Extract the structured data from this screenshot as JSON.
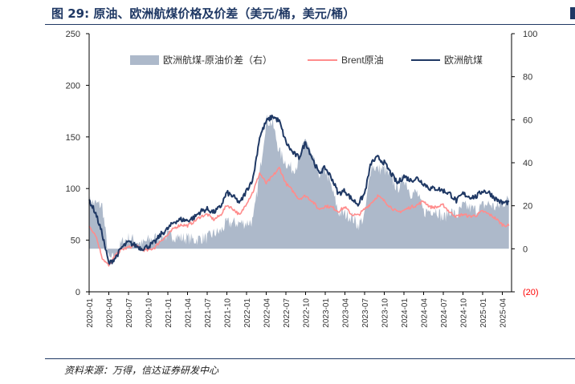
{
  "title": "图 29:  原油、欧洲航煤价格及价差（美元/桶，美元/桶）",
  "source": "资料来源：万得，信达证券研发中心",
  "colors": {
    "spread": "#adb9ca",
    "brent": "#ff8c8c",
    "jet": "#1f3864",
    "negative": "#ff0000"
  },
  "chart_data": {
    "type": "line",
    "title": "原油、欧洲航煤价格及价差（美元/桶，美元/桶）",
    "x_ticks": [
      "2020-01",
      "2020-04",
      "2020-07",
      "2020-10",
      "2021-01",
      "2021-04",
      "2021-07",
      "2021-10",
      "2022-01",
      "2022-04",
      "2022-07",
      "2022-10",
      "2023-01",
      "2023-04",
      "2023-07",
      "2023-10",
      "2024-01",
      "2024-04",
      "2024-07",
      "2024-10",
      "2025-01",
      "2025-04"
    ],
    "y_left": {
      "ticks": [
        "0",
        "50",
        "100",
        "150",
        "200",
        "250"
      ],
      "range": [
        0,
        250
      ]
    },
    "y_right": {
      "ticks": [
        "(20)",
        "0",
        "20",
        "40",
        "60",
        "80",
        "100"
      ],
      "range": [
        -20,
        100
      ]
    },
    "legend": [
      "欧洲航煤-原油价差（右）",
      "Brent原油",
      "欧洲航煤"
    ],
    "series": [
      {
        "name": "欧洲航煤",
        "axis": "left",
        "type": "line",
        "x": [
          "2020-01",
          "2020-02",
          "2020-03",
          "2020-04",
          "2020-05",
          "2020-06",
          "2020-07",
          "2020-08",
          "2020-09",
          "2020-10",
          "2020-11",
          "2020-12",
          "2021-01",
          "2021-02",
          "2021-03",
          "2021-04",
          "2021-05",
          "2021-06",
          "2021-07",
          "2021-08",
          "2021-09",
          "2021-10",
          "2021-11",
          "2021-12",
          "2022-01",
          "2022-02",
          "2022-03",
          "2022-04",
          "2022-05",
          "2022-06",
          "2022-07",
          "2022-08",
          "2022-09",
          "2022-10",
          "2022-11",
          "2022-12",
          "2023-01",
          "2023-02",
          "2023-03",
          "2023-04",
          "2023-05",
          "2023-06",
          "2023-07",
          "2023-08",
          "2023-09",
          "2023-10",
          "2023-11",
          "2023-12",
          "2024-01",
          "2024-02",
          "2024-03",
          "2024-04",
          "2024-05",
          "2024-06",
          "2024-07",
          "2024-08",
          "2024-09",
          "2024-10",
          "2024-11",
          "2024-12",
          "2025-01",
          "2025-02",
          "2025-03",
          "2025-04",
          "2025-05"
        ],
        "values": [
          89,
          76,
          56,
          27,
          33,
          43,
          48,
          45,
          42,
          44,
          48,
          56,
          61,
          68,
          70,
          69,
          72,
          78,
          80,
          77,
          82,
          96,
          92,
          86,
          98,
          110,
          150,
          165,
          170,
          165,
          145,
          135,
          130,
          145,
          130,
          115,
          120,
          110,
          95,
          98,
          90,
          85,
          95,
          125,
          130,
          125,
          115,
          105,
          112,
          108,
          110,
          105,
          100,
          100,
          98,
          95,
          88,
          95,
          92,
          92,
          98,
          96,
          90,
          86,
          87
        ]
      },
      {
        "name": "Brent原油",
        "axis": "left",
        "type": "line",
        "x": [
          "2020-01",
          "2020-02",
          "2020-03",
          "2020-04",
          "2020-05",
          "2020-06",
          "2020-07",
          "2020-08",
          "2020-09",
          "2020-10",
          "2020-11",
          "2020-12",
          "2021-01",
          "2021-02",
          "2021-03",
          "2021-04",
          "2021-05",
          "2021-06",
          "2021-07",
          "2021-08",
          "2021-09",
          "2021-10",
          "2021-11",
          "2021-12",
          "2022-01",
          "2022-02",
          "2022-03",
          "2022-04",
          "2022-05",
          "2022-06",
          "2022-07",
          "2022-08",
          "2022-09",
          "2022-10",
          "2022-11",
          "2022-12",
          "2023-01",
          "2023-02",
          "2023-03",
          "2023-04",
          "2023-05",
          "2023-06",
          "2023-07",
          "2023-08",
          "2023-09",
          "2023-10",
          "2023-11",
          "2023-12",
          "2024-01",
          "2024-02",
          "2024-03",
          "2024-04",
          "2024-05",
          "2024-06",
          "2024-07",
          "2024-08",
          "2024-09",
          "2024-10",
          "2024-11",
          "2024-12",
          "2025-01",
          "2025-02",
          "2025-03",
          "2025-04",
          "2025-05"
        ],
        "values": [
          64,
          55,
          33,
          25,
          35,
          41,
          43,
          45,
          41,
          40,
          43,
          50,
          55,
          62,
          65,
          64,
          68,
          73,
          75,
          70,
          74,
          84,
          80,
          74,
          86,
          97,
          115,
          105,
          112,
          120,
          105,
          98,
          90,
          93,
          88,
          80,
          83,
          82,
          78,
          82,
          75,
          74,
          80,
          86,
          93,
          88,
          82,
          77,
          79,
          82,
          84,
          88,
          82,
          82,
          84,
          77,
          73,
          75,
          73,
          74,
          78,
          75,
          71,
          65,
          64
        ]
      },
      {
        "name": "欧洲航煤-原油价差（右）",
        "axis": "right",
        "type": "area",
        "x": [
          "2020-01",
          "2020-02",
          "2020-03",
          "2020-04",
          "2020-05",
          "2020-06",
          "2020-07",
          "2020-08",
          "2020-09",
          "2020-10",
          "2020-11",
          "2020-12",
          "2021-01",
          "2021-02",
          "2021-03",
          "2021-04",
          "2021-05",
          "2021-06",
          "2021-07",
          "2021-08",
          "2021-09",
          "2021-10",
          "2021-11",
          "2021-12",
          "2022-01",
          "2022-02",
          "2022-03",
          "2022-04",
          "2022-05",
          "2022-06",
          "2022-07",
          "2022-08",
          "2022-09",
          "2022-10",
          "2022-11",
          "2022-12",
          "2023-01",
          "2023-02",
          "2023-03",
          "2023-04",
          "2023-05",
          "2023-06",
          "2023-07",
          "2023-08",
          "2023-09",
          "2023-10",
          "2023-11",
          "2023-12",
          "2024-01",
          "2024-02",
          "2024-03",
          "2024-04",
          "2024-05",
          "2024-06",
          "2024-07",
          "2024-08",
          "2024-09",
          "2024-10",
          "2024-11",
          "2024-12",
          "2025-01",
          "2025-02",
          "2025-03",
          "2025-04",
          "2025-05"
        ],
        "values": [
          22,
          21,
          20,
          -5,
          -4,
          3,
          5,
          4,
          2,
          4,
          5,
          6,
          6,
          6,
          5,
          5,
          4,
          5,
          5,
          7,
          8,
          12,
          12,
          12,
          12,
          13,
          35,
          60,
          58,
          45,
          40,
          37,
          40,
          52,
          42,
          35,
          37,
          28,
          17,
          16,
          15,
          11,
          15,
          39,
          37,
          37,
          33,
          28,
          33,
          26,
          26,
          17,
          18,
          18,
          14,
          18,
          15,
          20,
          19,
          18,
          20,
          21,
          19,
          21,
          23
        ]
      }
    ]
  }
}
